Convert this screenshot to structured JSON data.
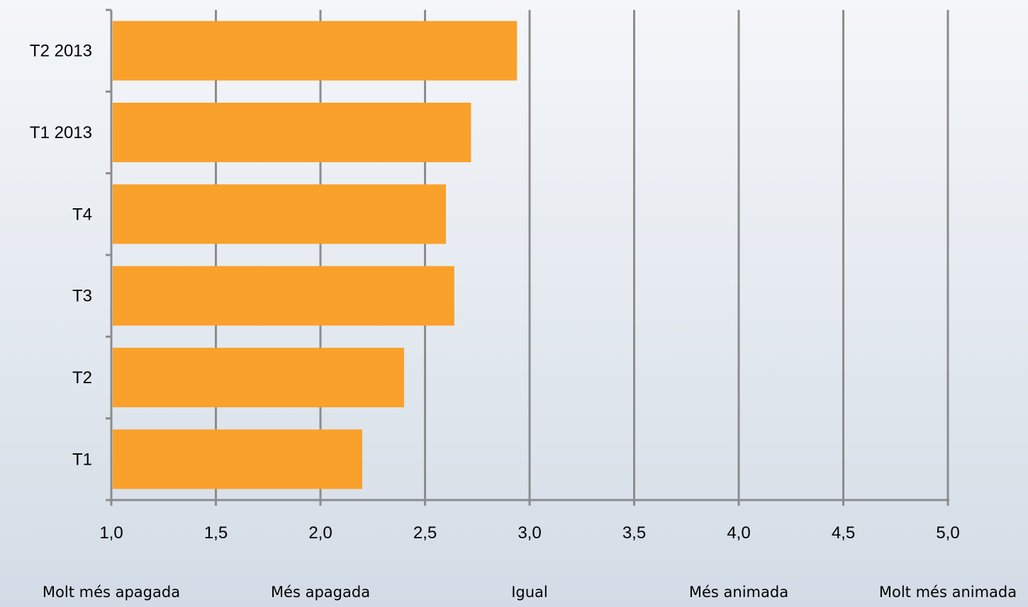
{
  "chart_data": {
    "type": "bar",
    "orientation": "horizontal",
    "categories": [
      "T1",
      "T2",
      "T3",
      "T4",
      "T1 2013",
      "T2 2013"
    ],
    "values": [
      2.2,
      2.4,
      2.64,
      2.6,
      2.72,
      2.94
    ],
    "xlim": [
      1.0,
      5.0
    ],
    "xticks": [
      1.0,
      1.5,
      2.0,
      2.5,
      3.0,
      3.5,
      4.0,
      4.5,
      5.0
    ],
    "xtick_labels": [
      "1,0",
      "1,5",
      "2,0",
      "2,5",
      "3,0",
      "3,5",
      "4,0",
      "4,5",
      "5,0"
    ],
    "scale_labels": [
      {
        "value": 1.0,
        "label": "Molt més apagada"
      },
      {
        "value": 2.0,
        "label": "Més apagada"
      },
      {
        "value": 3.0,
        "label": "Igual"
      },
      {
        "value": 4.0,
        "label": "Més animada"
      },
      {
        "value": 5.0,
        "label": "Molt més animada"
      }
    ],
    "grid": true,
    "legend": "none",
    "bar_color": "#f9a12b",
    "grid_color": "#8c8c8c"
  }
}
